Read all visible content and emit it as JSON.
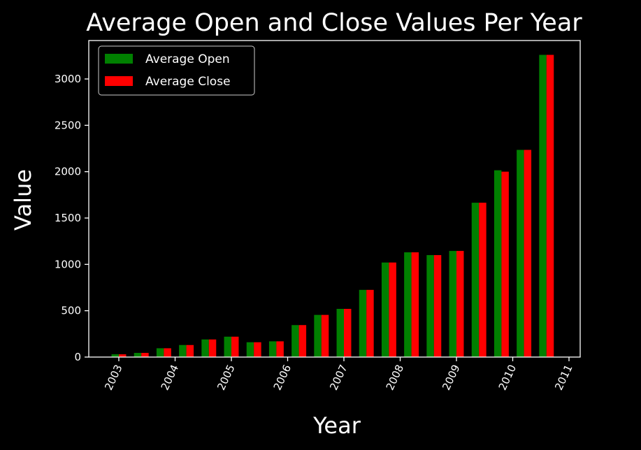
{
  "chart_data": {
    "type": "bar",
    "title": "Average Open and Close Values Per Year",
    "xlabel": "Year",
    "ylabel": "Value",
    "x_ticks": [
      "2003",
      "2004",
      "2005",
      "2006",
      "2007",
      "2008",
      "2009",
      "2010",
      "2011"
    ],
    "x_range": [
      2003,
      2011
    ],
    "y_ticks": [
      0,
      500,
      1000,
      1500,
      2000,
      2500,
      3000
    ],
    "ylim": [
      0,
      3400
    ],
    "grid": false,
    "legend_position": "top-left",
    "background": "#000000",
    "series": [
      {
        "name": "Average Open",
        "color": "#008000",
        "x": [
          2003.0,
          2003.4,
          2003.8,
          2004.2,
          2004.6,
          2005.0,
          2005.4,
          2005.8,
          2006.2,
          2006.6,
          2007.0,
          2007.4,
          2007.8,
          2008.2,
          2008.6,
          2009.0,
          2009.4,
          2009.8,
          2010.2,
          2010.6
        ],
        "values": [
          30,
          45,
          95,
          130,
          190,
          220,
          160,
          170,
          345,
          455,
          520,
          725,
          1020,
          1130,
          1100,
          1145,
          1665,
          2015,
          2235,
          3260
        ]
      },
      {
        "name": "Average Close",
        "color": "#ff0000",
        "x": [
          2003.0,
          2003.4,
          2003.8,
          2004.2,
          2004.6,
          2005.0,
          2005.4,
          2005.8,
          2006.2,
          2006.6,
          2007.0,
          2007.4,
          2007.8,
          2008.2,
          2008.6,
          2009.0,
          2009.4,
          2009.8,
          2010.2,
          2010.6
        ],
        "values": [
          30,
          45,
          95,
          130,
          190,
          220,
          160,
          170,
          345,
          455,
          520,
          725,
          1020,
          1130,
          1100,
          1145,
          1665,
          2000,
          2235,
          3260
        ]
      }
    ]
  }
}
